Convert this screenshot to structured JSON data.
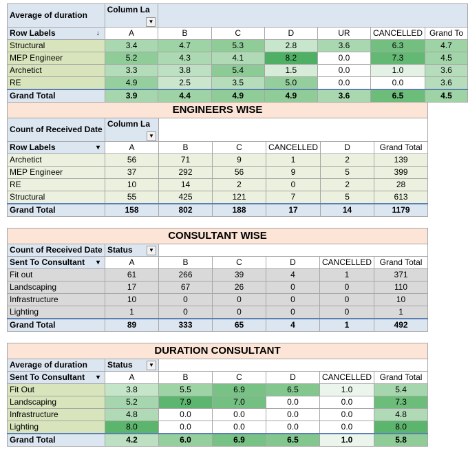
{
  "table1": {
    "corner": "Average of duration",
    "colfield": "Column La",
    "rowfield": "Row Labels",
    "cols": [
      "A",
      "B",
      "C",
      "D",
      "UR",
      "CANCELLED",
      "Grand To"
    ],
    "rows": [
      {
        "label": "Structural",
        "values": [
          "3.4",
          "4.7",
          "5.3",
          "2.8",
          "3.6",
          "6.3",
          "4.7"
        ]
      },
      {
        "label": "MEP Engineer",
        "values": [
          "5.2",
          "4.3",
          "4.1",
          "8.2",
          "0.0",
          "7.3",
          "4.5"
        ]
      },
      {
        "label": "Archetict",
        "values": [
          "3.3",
          "3.8",
          "5.4",
          "1.5",
          "0.0",
          "1.0",
          "3.6"
        ]
      },
      {
        "label": "RE",
        "values": [
          "4.9",
          "2.5",
          "3.5",
          "5.0",
          "0.0",
          "0.0",
          "3.6"
        ]
      }
    ],
    "total": {
      "label": "Grand Total",
      "values": [
        "3.9",
        "4.4",
        "4.9",
        "4.9",
        "3.6",
        "6.5",
        "4.5"
      ]
    },
    "colors": [
      [
        "#a9d8b0",
        "#9ed3a5",
        "#8fcc98",
        "#c7e6cb",
        "#a9d8b0",
        "#72bf80",
        "#9ed3a5"
      ],
      [
        "#8fcc98",
        "#acd9b2",
        "#b0dab6",
        "#4fb065",
        "#ffffff",
        "#63b873",
        "#a2d4a9"
      ],
      [
        "#b3dcb9",
        "#bde0c2",
        "#8ccb96",
        "#d6ecd9",
        "#ffffff",
        "#e4f2e6",
        "#b6ddbb"
      ],
      [
        "#95cf9e",
        "#cae7ce",
        "#b5ddba",
        "#93ce9c",
        "#ffffff",
        "#ffffff",
        "#b6ddbb"
      ],
      [
        "#a6d6ad",
        "#9ed3a5",
        "#8fcc98",
        "#8fcc98",
        "#a9d8b0",
        "#6cbd7a",
        "#9ed3a5"
      ]
    ]
  },
  "table2": {
    "title": "ENGINEERS WISE",
    "corner": "Count of Received Date",
    "colfield": "Column La",
    "rowfield": "Row Labels",
    "cols": [
      "A",
      "B",
      "C",
      "CANCELLED",
      "D",
      "Grand Total"
    ],
    "rows": [
      {
        "label": "Archetict",
        "values": [
          "56",
          "71",
          "9",
          "1",
          "2",
          "139"
        ]
      },
      {
        "label": "MEP Engineer",
        "values": [
          "37",
          "292",
          "56",
          "9",
          "5",
          "399"
        ]
      },
      {
        "label": "RE",
        "values": [
          "10",
          "14",
          "2",
          "0",
          "2",
          "28"
        ]
      },
      {
        "label": "Structural",
        "values": [
          "55",
          "425",
          "121",
          "7",
          "5",
          "613"
        ]
      }
    ],
    "total": {
      "label": "Grand Total",
      "values": [
        "158",
        "802",
        "188",
        "17",
        "14",
        "1179"
      ]
    }
  },
  "table3": {
    "title": "CONSULTANT WISE",
    "corner": "Count of Received Date",
    "colfield": "Status",
    "rowfield": "Sent To Consultant",
    "cols": [
      "A",
      "B",
      "C",
      "D",
      "CANCELLED",
      "Grand Total"
    ],
    "rows": [
      {
        "label": "Fit out",
        "values": [
          "61",
          "266",
          "39",
          "4",
          "1",
          "371"
        ]
      },
      {
        "label": "Landscaping",
        "values": [
          "17",
          "67",
          "26",
          "0",
          "0",
          "110"
        ]
      },
      {
        "label": "Infrastructure",
        "values": [
          "10",
          "0",
          "0",
          "0",
          "0",
          "10"
        ]
      },
      {
        "label": "Lighting",
        "values": [
          "1",
          "0",
          "0",
          "0",
          "0",
          "1"
        ]
      }
    ],
    "total": {
      "label": "Grand Total",
      "values": [
        "89",
        "333",
        "65",
        "4",
        "1",
        "492"
      ]
    }
  },
  "table4": {
    "title": "DURATION CONSULTANT",
    "corner": "Average of duration",
    "colfield": "Status",
    "rowfield": "Sent To Consultant",
    "cols": [
      "A",
      "B",
      "C",
      "D",
      "CANCELLED",
      "Grand Total"
    ],
    "rows": [
      {
        "label": "Fit Out",
        "values": [
          "3.8",
          "5.5",
          "6.9",
          "6.5",
          "1.0",
          "5.4"
        ]
      },
      {
        "label": "Landscaping",
        "values": [
          "5.2",
          "7.9",
          "7.0",
          "0.0",
          "0.0",
          "7.3"
        ]
      },
      {
        "label": "Infrastructure",
        "values": [
          "4.8",
          "0.0",
          "0.0",
          "0.0",
          "0.0",
          "4.8"
        ]
      },
      {
        "label": "Lighting",
        "values": [
          "8.0",
          "0.0",
          "0.0",
          "0.0",
          "0.0",
          "8.0"
        ]
      }
    ],
    "total": {
      "label": "Grand Total",
      "values": [
        "4.2",
        "6.0",
        "6.9",
        "6.5",
        "1.0",
        "5.8"
      ]
    },
    "colors": [
      [
        "#c5e5c9",
        "#9ed3a5",
        "#77c284",
        "#83c78f",
        "#ebf5ec",
        "#a6d6ad"
      ],
      [
        "#a6d6ad",
        "#5db66f",
        "#74c082",
        "#ffffff",
        "#ffffff",
        "#6cbd7a"
      ],
      [
        "#b0dab6",
        "#ffffff",
        "#ffffff",
        "#ffffff",
        "#ffffff",
        "#b0dab6"
      ],
      [
        "#5cb56d",
        "#ffffff",
        "#ffffff",
        "#ffffff",
        "#ffffff",
        "#5cb56d"
      ],
      [
        "#bde0c2",
        "#95cf9e",
        "#77c284",
        "#83c78f",
        "#ebf5ec",
        "#8fcc98"
      ]
    ]
  },
  "icons": {
    "dropdown": "dropdown-arrow-icon",
    "filter": "filter-icon",
    "sort": "sort-icon"
  }
}
